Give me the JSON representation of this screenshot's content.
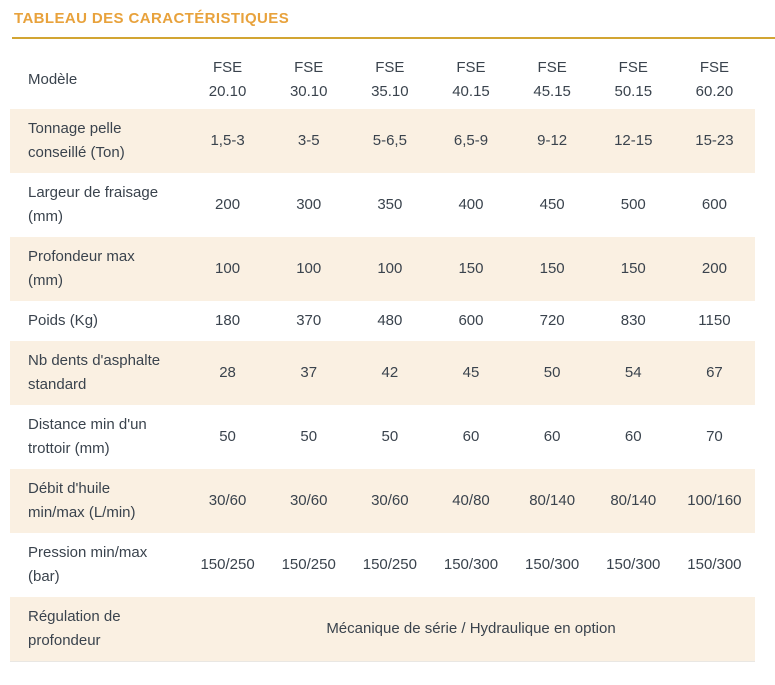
{
  "title": "TABLEAU DES CARACTÉRISTIQUES",
  "colors": {
    "accent_title": "#E8A23C",
    "title_rule": "#D2A533",
    "row_alt_background": "#FAF0E2",
    "text": "#3A434D"
  },
  "table": {
    "header_label": "Modèle",
    "models": [
      {
        "brand": "FSE",
        "number": "20.10"
      },
      {
        "brand": "FSE",
        "number": "30.10"
      },
      {
        "brand": "FSE",
        "number": "35.10"
      },
      {
        "brand": "FSE",
        "number": "40.15"
      },
      {
        "brand": "FSE",
        "number": "45.15"
      },
      {
        "brand": "FSE",
        "number": "50.15"
      },
      {
        "brand": "FSE",
        "number": "60.20"
      }
    ],
    "rows": [
      {
        "label": "Tonnage pelle conseillé (Ton)",
        "values": [
          "1,5-3",
          "3-5",
          "5-6,5",
          "6,5-9",
          "9-12",
          "12-15",
          "15-23"
        ]
      },
      {
        "label": "Largeur de fraisage (mm)",
        "values": [
          "200",
          "300",
          "350",
          "400",
          "450",
          "500",
          "600"
        ]
      },
      {
        "label": "Profondeur max (mm)",
        "values": [
          "100",
          "100",
          "100",
          "150",
          "150",
          "150",
          "200"
        ]
      },
      {
        "label": "Poids (Kg)",
        "values": [
          "180",
          "370",
          "480",
          "600",
          "720",
          "830",
          "1150"
        ]
      },
      {
        "label": "Nb dents d'asphalte standard",
        "values": [
          "28",
          "37",
          "42",
          "45",
          "50",
          "54",
          "67"
        ]
      },
      {
        "label": "Distance min d'un trottoir (mm)",
        "values": [
          "50",
          "50",
          "50",
          "60",
          "60",
          "60",
          "70"
        ]
      },
      {
        "label": "Débit d'huile min/max (L/min)",
        "values": [
          "30/60",
          "30/60",
          "30/60",
          "40/80",
          "80/140",
          "80/140",
          "100/160"
        ]
      },
      {
        "label": "Pression min/max (bar)",
        "values": [
          "150/250",
          "150/250",
          "150/250",
          "150/300",
          "150/300",
          "150/300",
          "150/300"
        ]
      }
    ],
    "footer_row": {
      "label": "Régulation de profondeur",
      "value": "Mécanique de série / Hydraulique en option"
    }
  }
}
